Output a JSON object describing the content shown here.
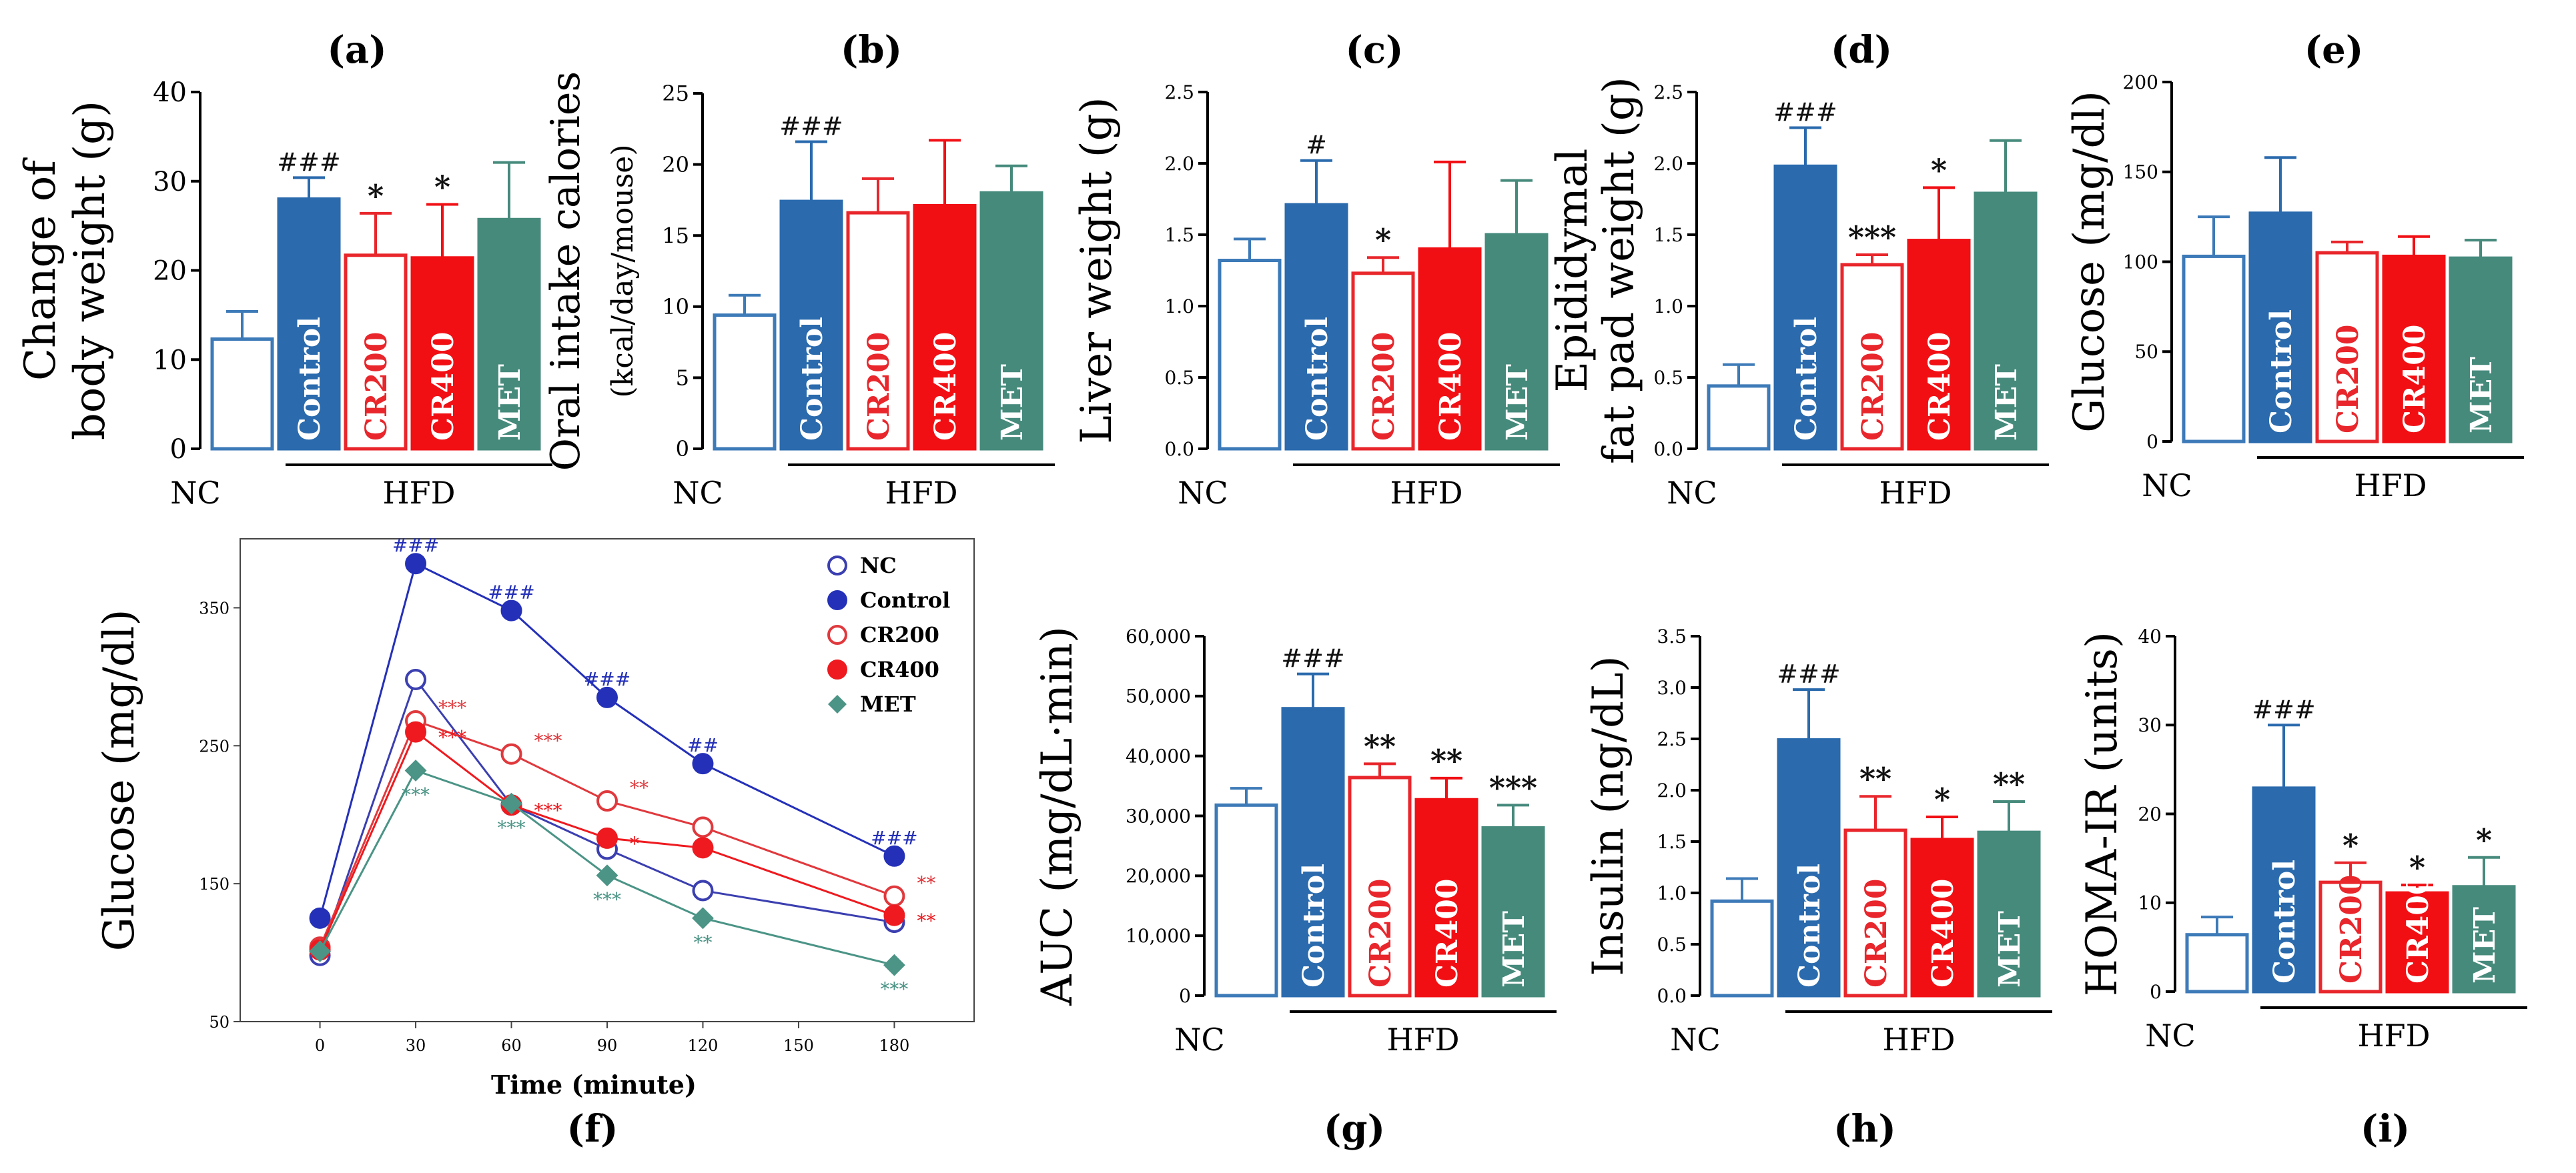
{
  "colors": {
    "nc": "#3d7ab8",
    "control": "#2a6aad",
    "cr200": "#e8262b",
    "cr400": "#f10f14",
    "met": "#468a7c",
    "ogtt_nc": "#3b3fb0",
    "ogtt_control": "#2430b8",
    "ogtt_cr200": "#e0393d",
    "ogtt_cr400": "#ee1a1f",
    "ogtt_met": "#4b9486",
    "sig_dark": "#111111"
  },
  "group_labels": {
    "nc": "NC",
    "hfd": "HFD"
  },
  "chart_data": [
    {
      "id": "a",
      "type": "bar",
      "panel_label": "(a)",
      "ylabel_lines": [
        "Change of",
        "body weight (g)"
      ],
      "ylim": [
        0,
        40
      ],
      "yticks": [
        0,
        10,
        20,
        30,
        40
      ],
      "categories": [
        "NC",
        "Control",
        "CR200",
        "CR400",
        "MET"
      ],
      "values": [
        12.3,
        28.0,
        21.7,
        21.4,
        25.7
      ],
      "errors": [
        3.1,
        2.4,
        4.7,
        6.0,
        6.4
      ],
      "annotations": [
        "",
        "###",
        "*",
        "*",
        ""
      ]
    },
    {
      "id": "b",
      "type": "bar",
      "panel_label": "(b)",
      "ylabel_lines": [
        "Oral intake calories",
        "(kcal/day/mouse)"
      ],
      "ylim": [
        0,
        25
      ],
      "yticks": [
        0,
        5,
        10,
        15,
        20,
        25
      ],
      "categories": [
        "NC",
        "Control",
        "CR200",
        "CR400",
        "MET"
      ],
      "values": [
        9.4,
        17.4,
        16.6,
        17.1,
        18.0
      ],
      "errors": [
        1.4,
        4.2,
        2.4,
        4.6,
        1.9
      ],
      "annotations": [
        "",
        "###",
        "",
        "",
        ""
      ]
    },
    {
      "id": "c",
      "type": "bar",
      "panel_label": "(c)",
      "ylabel_lines": [
        "Liver weight (g)"
      ],
      "ylim": [
        0,
        2.5
      ],
      "yticks": [
        0.0,
        0.5,
        1.0,
        1.5,
        2.0,
        2.5
      ],
      "tick_decimals": 1,
      "categories": [
        "NC",
        "Control",
        "CR200",
        "CR400",
        "MET"
      ],
      "values": [
        1.32,
        1.71,
        1.23,
        1.4,
        1.5
      ],
      "errors": [
        0.15,
        0.31,
        0.11,
        0.61,
        0.38
      ],
      "annotations": [
        "",
        "#",
        "*",
        "",
        ""
      ]
    },
    {
      "id": "d",
      "type": "bar",
      "panel_label": "(d)",
      "ylabel_lines": [
        "Epididymal",
        "fat pad weight (g)"
      ],
      "ylim": [
        0,
        2.5
      ],
      "yticks": [
        0.0,
        0.5,
        1.0,
        1.5,
        2.0,
        2.5
      ],
      "tick_decimals": 1,
      "categories": [
        "NC",
        "Control",
        "CR200",
        "CR400",
        "MET"
      ],
      "values": [
        0.44,
        1.98,
        1.29,
        1.46,
        1.79
      ],
      "errors": [
        0.15,
        0.27,
        0.07,
        0.37,
        0.37
      ],
      "annotations": [
        "",
        "###",
        "***",
        "*",
        ""
      ]
    },
    {
      "id": "e",
      "type": "bar",
      "panel_label": "(e)",
      "ylabel_lines": [
        "Glucose (mg/dl)"
      ],
      "ylim": [
        0,
        200
      ],
      "yticks": [
        0,
        50,
        100,
        150,
        200
      ],
      "categories": [
        "NC",
        "Control",
        "CR200",
        "CR400",
        "MET"
      ],
      "values": [
        103,
        127,
        105,
        103,
        102
      ],
      "errors": [
        22,
        31,
        6,
        11,
        10
      ],
      "annotations": [
        "",
        "",
        "",
        "",
        ""
      ]
    },
    {
      "id": "f",
      "type": "line",
      "panel_label": "(f)",
      "xlabel": "Time (minute)",
      "ylabel": "Glucose (mg/dl)",
      "x": [
        0,
        30,
        60,
        90,
        120,
        180
      ],
      "xticks": [
        0,
        30,
        60,
        90,
        120,
        150,
        180
      ],
      "ylim": [
        50,
        400
      ],
      "yticks": [
        50,
        150,
        250,
        350
      ],
      "series": [
        {
          "name": "NC",
          "values": [
            98,
            298,
            207,
            175,
            145,
            122
          ],
          "annotations": [
            "",
            "",
            "",
            "",
            "",
            ""
          ]
        },
        {
          "name": "Control",
          "values": [
            125,
            382,
            348,
            285,
            237,
            170
          ],
          "annotations": [
            "",
            "###",
            "###",
            "###",
            "##",
            "###"
          ]
        },
        {
          "name": "CR200",
          "values": [
            104,
            268,
            244,
            210,
            191,
            141
          ],
          "annotations": [
            "",
            "***",
            "***",
            "**",
            "",
            "**"
          ]
        },
        {
          "name": "CR400",
          "values": [
            102,
            260,
            207,
            183,
            176,
            127
          ],
          "annotations": [
            "",
            "***",
            "***",
            "*",
            "",
            "**"
          ]
        },
        {
          "name": "MET",
          "values": [
            101,
            232,
            208,
            156,
            125,
            91
          ],
          "annotations": [
            "",
            "***",
            "***",
            "***",
            "**",
            "***"
          ]
        }
      ]
    },
    {
      "id": "g",
      "type": "bar",
      "panel_label": "(g)",
      "ylabel_lines": [
        "AUC (mg/dL·min)"
      ],
      "ylim": [
        0,
        60000
      ],
      "yticks": [
        0,
        10000,
        20000,
        30000,
        40000,
        50000,
        60000
      ],
      "tick_format": "comma",
      "categories": [
        "NC",
        "Control",
        "CR200",
        "CR400",
        "MET"
      ],
      "values": [
        31800,
        47900,
        36400,
        32700,
        28000
      ],
      "errors": [
        2800,
        5800,
        2300,
        3600,
        3800
      ],
      "annotations": [
        "",
        "###",
        "**",
        "**",
        "***"
      ]
    },
    {
      "id": "h",
      "type": "bar",
      "panel_label": "(h)",
      "ylabel_lines": [
        "Insulin (ng/dL)"
      ],
      "ylim": [
        0,
        3.5
      ],
      "yticks": [
        0.0,
        0.5,
        1.0,
        1.5,
        2.0,
        2.5,
        3.0,
        3.5
      ],
      "tick_decimals": 1,
      "categories": [
        "NC",
        "Control",
        "CR200",
        "CR400",
        "MET"
      ],
      "values": [
        0.92,
        2.49,
        1.61,
        1.52,
        1.59
      ],
      "errors": [
        0.22,
        0.49,
        0.33,
        0.22,
        0.3
      ],
      "annotations": [
        "",
        "###",
        "**",
        "*",
        "**"
      ]
    },
    {
      "id": "i",
      "type": "bar",
      "panel_label": "(i)",
      "ylabel_lines": [
        "HOMA-IR (units)"
      ],
      "ylim": [
        0,
        40
      ],
      "yticks": [
        0,
        10,
        20,
        30,
        40
      ],
      "categories": [
        "NC",
        "Control",
        "CR200",
        "CR400",
        "MET"
      ],
      "values": [
        6.4,
        22.9,
        12.3,
        11.1,
        11.8
      ],
      "errors": [
        2.0,
        7.1,
        2.2,
        0.9,
        3.3
      ],
      "annotations": [
        "",
        "###",
        "*",
        "*",
        "*"
      ]
    }
  ]
}
